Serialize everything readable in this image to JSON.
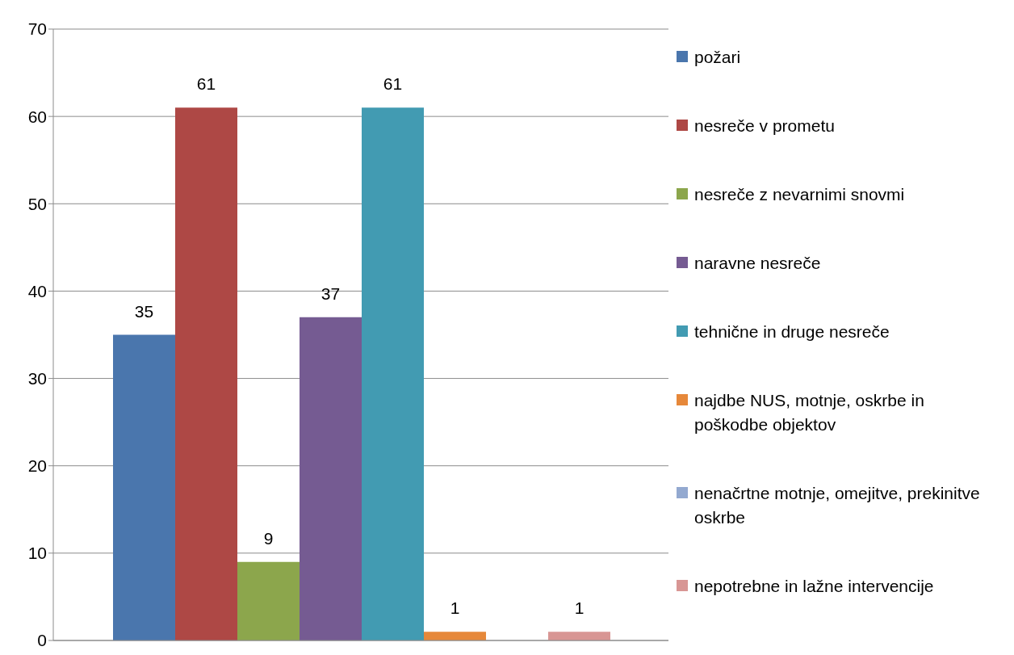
{
  "chart_data": {
    "type": "bar",
    "categories": [
      null
    ],
    "series": [
      {
        "name": "požari",
        "color": "#4a76ad",
        "values": [
          35
        ]
      },
      {
        "name": "nesreče v prometu",
        "color": "#ae4845",
        "values": [
          61
        ]
      },
      {
        "name": "nesreče z nevarnimi snovmi",
        "color": "#8ca64c",
        "values": [
          9
        ]
      },
      {
        "name": "naravne nesreče",
        "color": "#755b92",
        "values": [
          37
        ]
      },
      {
        "name": "tehnične in druge nesreče",
        "color": "#429bb2",
        "values": [
          61
        ]
      },
      {
        "name": "najdbe NUS, motnje, oskrbe in poškodbe objektov",
        "color": "#e6883a",
        "values": [
          1
        ]
      },
      {
        "name": "nenačrtne motnje, omejitve, prekinitve oskrbe",
        "color": "#93a9d0",
        "values": [
          null
        ]
      },
      {
        "name": "nepotrebne in lažne intervencije",
        "color": "#d89694",
        "values": [
          1
        ]
      }
    ],
    "ylim": [
      0,
      70
    ],
    "yticks": [
      0,
      10,
      20,
      30,
      40,
      50,
      60,
      70
    ],
    "grid": "y",
    "legend": "right",
    "data_labels": true
  }
}
